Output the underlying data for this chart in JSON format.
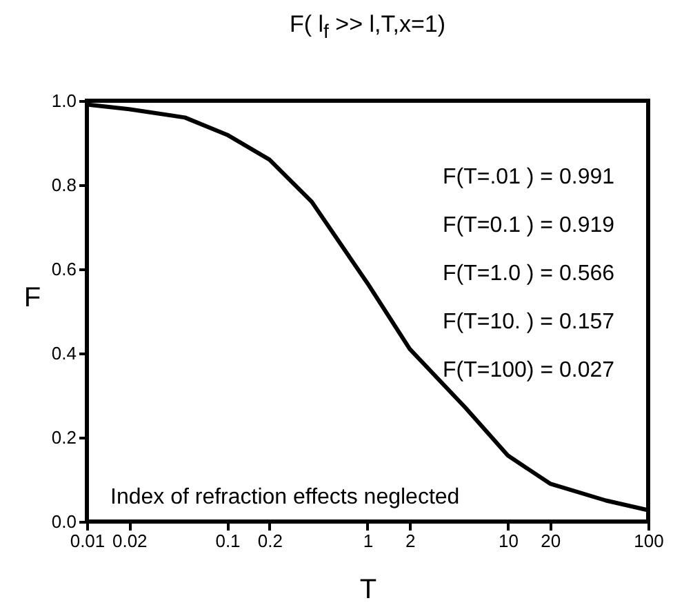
{
  "chart_data": {
    "type": "line",
    "title": "F( l$_{f}$ >> l,T,x=1)",
    "xlabel": "T",
    "ylabel": "F",
    "x": [
      0.01,
      0.02,
      0.05,
      0.1,
      0.2,
      0.4,
      1,
      2,
      5,
      10,
      20,
      50,
      100
    ],
    "series": [
      {
        "color": "#000000",
        "values": [
          0.991,
          0.98,
          0.96,
          0.919,
          0.86,
          0.76,
          0.566,
          0.41,
          0.27,
          0.157,
          0.09,
          0.05,
          0.027
        ]
      }
    ],
    "log": "x",
    "xlim": [
      0.01,
      100
    ],
    "xticks": [
      0.01,
      0.02,
      0.1,
      0.2,
      1,
      2,
      10,
      20,
      100
    ],
    "ylim": [
      0,
      1
    ],
    "yticks": [
      {
        "value": 0,
        "label": "0.0"
      },
      0.2,
      0.4,
      0.6,
      0.8,
      {
        "value": 1,
        "label": "1.0"
      }
    ],
    "grid": false,
    "marker": "none",
    "line_style": "solid",
    "annotations": [
      "F(T=.01 ) = 0.991",
      "F(T=0.1 ) = 0.919",
      "F(T=1.0 ) = 0.566",
      "F(T=10. ) = 0.157",
      "F(T=100) = 0.027",
      "Index of refraction effects neglected"
    ]
  }
}
